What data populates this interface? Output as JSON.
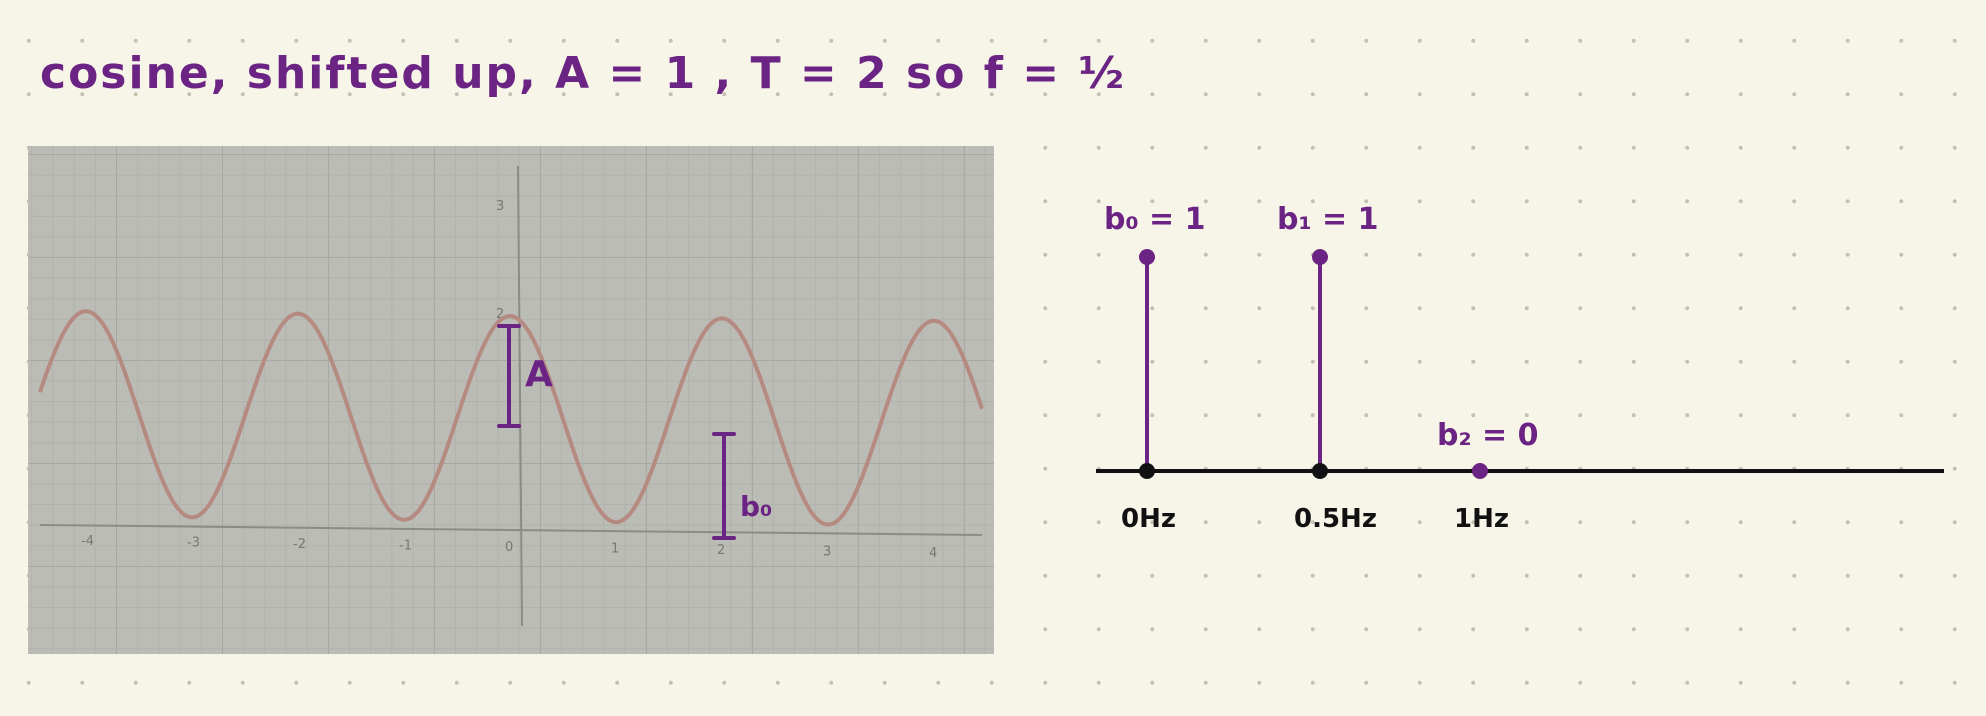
{
  "note": "cosine, shifted up, A = 1 , T = 2 so f = ½",
  "photo_graph": {
    "x_ticks": [
      "-4",
      "-3",
      "-2",
      "-1",
      "0",
      "1",
      "2",
      "3",
      "4"
    ],
    "y_ticks": [
      "3",
      "2"
    ],
    "amplitude_label": "A",
    "offset_label": "b₀"
  },
  "spectrum": {
    "stems": [
      {
        "coef_label": "b₀ = 1",
        "freq_label": "0Hz",
        "value": 1
      },
      {
        "coef_label": "b₁ = 1",
        "freq_label": "0.5Hz",
        "value": 1
      },
      {
        "coef_label": "b₂ = 0",
        "freq_label": "1Hz",
        "value": 0
      }
    ]
  },
  "colors": {
    "ink_purple": "#6b2483",
    "curve": "#b58a80",
    "paper": "#f7f4e8"
  }
}
